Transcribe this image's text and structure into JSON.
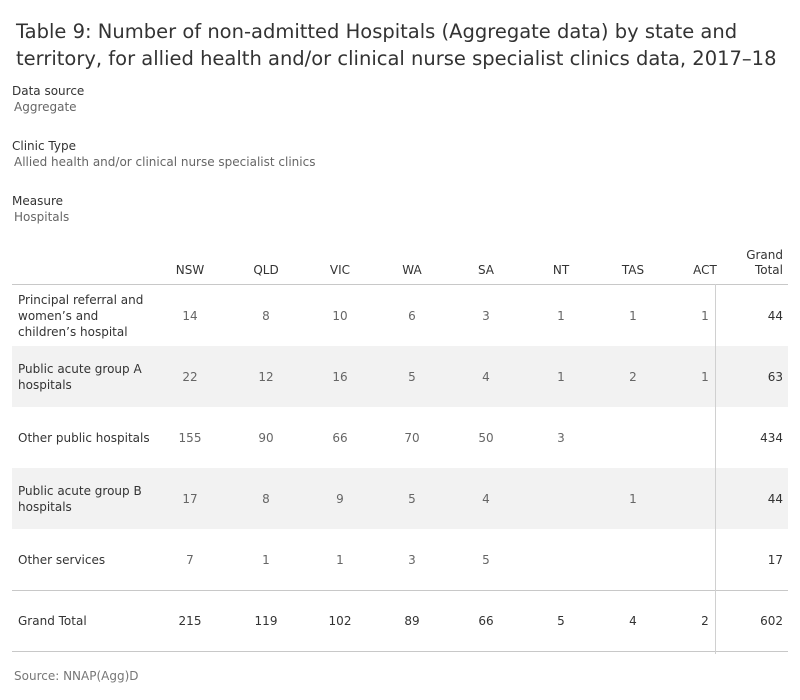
{
  "title": "Table 9: Number of non-admitted Hospitals (Aggregate data) by state and territory, for allied health and/or clinical nurse specialist clinics data, 2017–18",
  "filters": [
    {
      "label": "Data source",
      "value": "Aggregate"
    },
    {
      "label": "Clinic Type",
      "value": "Allied health and/or clinical nurse specialist clinics"
    },
    {
      "label": "Measure",
      "value": "Hospitals"
    }
  ],
  "chart_data": {
    "type": "table",
    "columns": [
      "NSW",
      "QLD",
      "VIC",
      "WA",
      "SA",
      "NT",
      "TAS",
      "ACT",
      "Grand Total"
    ],
    "rows": [
      {
        "label": "Principal referral and women’s and children’s hospital",
        "values": [
          "14",
          "8",
          "10",
          "6",
          "3",
          "1",
          "1",
          "1",
          "44"
        ]
      },
      {
        "label": "Public acute group A hospitals",
        "values": [
          "22",
          "12",
          "16",
          "5",
          "4",
          "1",
          "2",
          "1",
          "63"
        ]
      },
      {
        "label": "Other public hospitals",
        "values": [
          "155",
          "90",
          "66",
          "70",
          "50",
          "3",
          "",
          "",
          "434"
        ]
      },
      {
        "label": "Public acute group B hospitals",
        "values": [
          "17",
          "8",
          "9",
          "5",
          "4",
          "",
          "1",
          "",
          "44"
        ]
      },
      {
        "label": "Other services",
        "values": [
          "7",
          "1",
          "1",
          "3",
          "5",
          "",
          "",
          "",
          "17"
        ]
      }
    ],
    "grand_total": {
      "label": "Grand Total",
      "values": [
        "215",
        "119",
        "102",
        "89",
        "66",
        "5",
        "4",
        "2",
        "602"
      ]
    }
  },
  "source": "Source: NNAP(Agg)D"
}
